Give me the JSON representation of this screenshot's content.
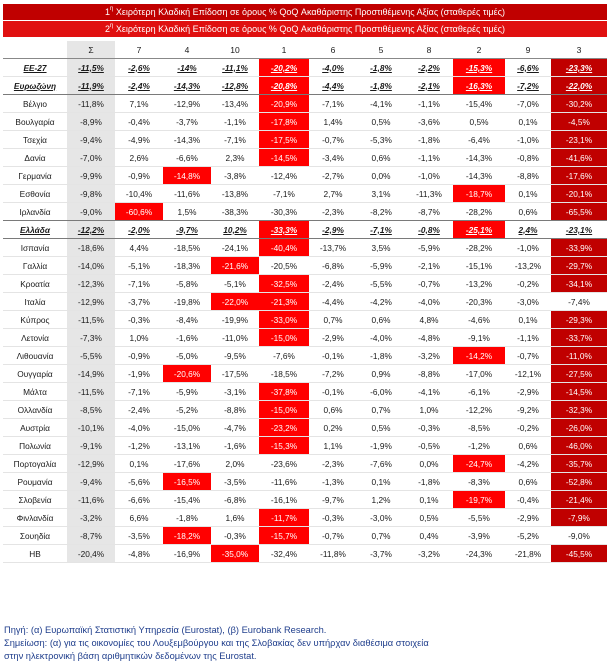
{
  "banner": {
    "line1_num": "1",
    "line1_sup": "η",
    "line1_text": " Χειρότερη Κλαδική Επίδοση σε όρους % QoQ Ακαθάριστης Προστιθέμενης Αξίας (σταθερές τιμές)",
    "line2_num": "2",
    "line2_sup": "η",
    "line2_text": " Χειρότερη Κλαδική Επίδοση σε όρους % QoQ Ακαθάριστης Προστιθέμενης Αξίας (σταθερές τιμές)"
  },
  "table": {
    "columns": [
      "",
      "Σ",
      "7",
      "4",
      "10",
      "1",
      "6",
      "5",
      "8",
      "2",
      "9",
      "3"
    ],
    "rows": [
      {
        "name": "ΕΕ-27",
        "values": [
          "-11,5%",
          "-2,6%",
          "-14%",
          "-11,1%",
          "-20,2%",
          "-4,0%",
          "-1,8%",
          "-2,2%",
          "-15,3%",
          "-6,6%",
          "-23,3%"
        ],
        "hl": [
          4,
          8
        ],
        "bold": true
      },
      {
        "name": "Ευρωζώνη",
        "values": [
          "-11,9%",
          "-2,4%",
          "-14,3%",
          "-12,8%",
          "-20,8%",
          "-4,4%",
          "-1,8%",
          "-2,1%",
          "-16,3%",
          "-7,2%",
          "-22,0%"
        ],
        "hl": [
          4,
          8
        ],
        "bold": true,
        "sep": true
      },
      {
        "name": "Βέλγιο",
        "values": [
          "-11,8%",
          "7,1%",
          "-12,9%",
          "-13,4%",
          "-20,9%",
          "-7,1%",
          "-4,1%",
          "-1,1%",
          "-15,4%",
          "-7,0%",
          "-30,2%"
        ],
        "hl": [
          4
        ]
      },
      {
        "name": "Βουλγαρία",
        "values": [
          "-8,9%",
          "-0,4%",
          "-3,7%",
          "-1,1%",
          "-17,8%",
          "1,4%",
          "0,5%",
          "-3,6%",
          "0,5%",
          "0,1%",
          "-4,5%"
        ],
        "hl": [
          4
        ]
      },
      {
        "name": "Τσεχία",
        "values": [
          "-9,4%",
          "-4,9%",
          "-14,3%",
          "-7,1%",
          "-17,5%",
          "-0,7%",
          "-5,3%",
          "-1,8%",
          "-6,4%",
          "-1,0%",
          "-23,1%"
        ],
        "hl": [
          4
        ]
      },
      {
        "name": "Δανία",
        "values": [
          "-7,0%",
          "2,6%",
          "-6,6%",
          "2,3%",
          "-14,5%",
          "-3,4%",
          "0,6%",
          "-1,1%",
          "-14,3%",
          "-0,8%",
          "-41,6%"
        ],
        "hl": [
          4
        ]
      },
      {
        "name": "Γερμανία",
        "values": [
          "-9,9%",
          "-0,9%",
          "-14,8%",
          "-3,8%",
          "-12,4%",
          "-2,7%",
          "0,0%",
          "-1,0%",
          "-14,3%",
          "-8,8%",
          "-17,6%"
        ],
        "hl": [
          2
        ]
      },
      {
        "name": "Εσθονία",
        "values": [
          "-9,8%",
          "-10,4%",
          "-11,6%",
          "-13,8%",
          "-7,1%",
          "2,7%",
          "3,1%",
          "-11,3%",
          "-18,7%",
          "0,1%",
          "-20,1%"
        ],
        "hl": [
          8
        ]
      },
      {
        "name": "Ιρλανδία",
        "values": [
          "-9,0%",
          "-60,6%",
          "1,5%",
          "-38,3%",
          "-30,3%",
          "-2,3%",
          "-8,2%",
          "-8,7%",
          "-28,2%",
          "0,6%",
          "-65,5%"
        ],
        "hl": [
          1
        ],
        "sep": true
      },
      {
        "name": "Ελλάδα",
        "values": [
          "-12,2%",
          "-2,0%",
          "-9,7%",
          "10,2%",
          "-33,3%",
          "-2,9%",
          "-7,1%",
          "-0,8%",
          "-25,1%",
          "2,4%",
          "-23,1%"
        ],
        "hl": [
          4,
          8
        ],
        "bold": true,
        "sep": true,
        "light3": true
      },
      {
        "name": "Ισπανία",
        "values": [
          "-18,6%",
          "4,4%",
          "-18,5%",
          "-24,1%",
          "-40,4%",
          "-13,7%",
          "3,5%",
          "-5,9%",
          "-28,2%",
          "-1,0%",
          "-33,9%"
        ],
        "hl": [
          4
        ]
      },
      {
        "name": "Γαλλία",
        "values": [
          "-14,0%",
          "-5,1%",
          "-18,3%",
          "-21,6%",
          "-20,5%",
          "-6,8%",
          "-5,9%",
          "-2,1%",
          "-15,1%",
          "-13,2%",
          "-29,7%"
        ],
        "hl": [
          3
        ]
      },
      {
        "name": "Κροατία",
        "values": [
          "-12,3%",
          "-7,1%",
          "-5,8%",
          "-5,1%",
          "-32,5%",
          "-2,4%",
          "-5,5%",
          "-0,7%",
          "-13,2%",
          "-0,2%",
          "-34,1%"
        ],
        "hl": [
          4
        ]
      },
      {
        "name": "Ιταλία",
        "values": [
          "-12,9%",
          "-3,7%",
          "-19,8%",
          "-22,0%",
          "-21,3%",
          "-4,4%",
          "-4,2%",
          "-4,0%",
          "-20,3%",
          "-3,0%",
          "-7,4%"
        ],
        "hl": [
          3,
          4
        ],
        "light3": true
      },
      {
        "name": "Κύπρος",
        "values": [
          "-11,5%",
          "-0,3%",
          "-8,4%",
          "-19,9%",
          "-33,0%",
          "0,7%",
          "0,6%",
          "4,8%",
          "-4,6%",
          "0,1%",
          "-29,3%"
        ],
        "hl": [
          4
        ]
      },
      {
        "name": "Λετονία",
        "values": [
          "-7,3%",
          "1,0%",
          "-1,6%",
          "-11,0%",
          "-15,0%",
          "-2,9%",
          "-4,0%",
          "-4,8%",
          "-9,1%",
          "-1,1%",
          "-33,7%"
        ],
        "hl": [
          4
        ]
      },
      {
        "name": "Λιθουανία",
        "values": [
          "-5,5%",
          "-0,9%",
          "-5,0%",
          "-9,5%",
          "-7,6%",
          "-0,1%",
          "-1,8%",
          "-3,2%",
          "-14,2%",
          "-0,7%",
          "-11,0%"
        ],
        "hl": [
          8
        ]
      },
      {
        "name": "Ουγγαρία",
        "values": [
          "-14,9%",
          "-1,9%",
          "-20,6%",
          "-17,5%",
          "-18,5%",
          "-7,2%",
          "0,9%",
          "-8,8%",
          "-17,0%",
          "-12,1%",
          "-27,5%"
        ],
        "hl": [
          2
        ]
      },
      {
        "name": "Μάλτα",
        "values": [
          "-11,5%",
          "-7,1%",
          "-5,9%",
          "-3,1%",
          "-37,8%",
          "-0,1%",
          "-6,0%",
          "-4,1%",
          "-6,1%",
          "-2,9%",
          "-14,5%"
        ],
        "hl": [
          4
        ]
      },
      {
        "name": "Ολλανδία",
        "values": [
          "-8,5%",
          "-2,4%",
          "-5,2%",
          "-8,8%",
          "-15,0%",
          "0,6%",
          "0,7%",
          "1,0%",
          "-12,2%",
          "-9,2%",
          "-32,3%"
        ],
        "hl": [
          4
        ]
      },
      {
        "name": "Αυστρία",
        "values": [
          "-10,1%",
          "-4,0%",
          "-15,0%",
          "-4,7%",
          "-23,2%",
          "0,2%",
          "0,5%",
          "-0,3%",
          "-8,5%",
          "-0,2%",
          "-26,0%"
        ],
        "hl": [
          4
        ]
      },
      {
        "name": "Πολωνία",
        "values": [
          "-9,1%",
          "-1,2%",
          "-13,1%",
          "-1,6%",
          "-15,3%",
          "1,1%",
          "-1,9%",
          "-0,5%",
          "-1,2%",
          "0,6%",
          "-46,0%"
        ],
        "hl": [
          4
        ]
      },
      {
        "name": "Πορτογαλία",
        "values": [
          "-12,9%",
          "0,1%",
          "-17,6%",
          "2,0%",
          "-23,6%",
          "-2,3%",
          "-7,6%",
          "0,0%",
          "-24,7%",
          "-4,2%",
          "-35,7%"
        ],
        "hl": [
          8
        ]
      },
      {
        "name": "Ρουμανία",
        "values": [
          "-9,4%",
          "-5,6%",
          "-16,5%",
          "-3,5%",
          "-11,6%",
          "-1,3%",
          "0,1%",
          "-1,8%",
          "-8,3%",
          "0,6%",
          "-52,8%"
        ],
        "hl": [
          2
        ]
      },
      {
        "name": "Σλοβενία",
        "values": [
          "-11,6%",
          "-6,6%",
          "-15,4%",
          "-6,8%",
          "-16,1%",
          "-9,7%",
          "1,2%",
          "0,1%",
          "-19,7%",
          "-0,4%",
          "-21,4%"
        ],
        "hl": [
          8
        ]
      },
      {
        "name": "Φινλανδία",
        "values": [
          "-3,2%",
          "6,6%",
          "-1,8%",
          "1,6%",
          "-11,7%",
          "-0,3%",
          "-3,0%",
          "0,5%",
          "-5,5%",
          "-2,9%",
          "-7,9%"
        ],
        "hl": [
          4
        ]
      },
      {
        "name": "Σουηδία",
        "values": [
          "-8,7%",
          "-3,5%",
          "-18,2%",
          "-0,3%",
          "-15,7%",
          "-0,7%",
          "0,7%",
          "0,4%",
          "-3,9%",
          "-5,2%",
          "-9,0%"
        ],
        "hl": [
          2,
          4
        ],
        "light3": true
      },
      {
        "name": "ΗΒ",
        "values": [
          "-20,4%",
          "-4,8%",
          "-16,9%",
          "-35,0%",
          "-32,4%",
          "-11,8%",
          "-3,7%",
          "-3,2%",
          "-24,3%",
          "-21,8%",
          "-45,5%"
        ],
        "hl": [
          3
        ]
      }
    ]
  },
  "notes": {
    "source": "Πηγή: (α) Ευρωπαϊκή Στατιστική Υπηρεσία (Eurostat), (β) Eurobank Research.",
    "note_line1": "Σημείωση: (α) για τις οικονομίες του Λουξεμβούργου και της Σλοβακίας δεν υπήρχαν διαθέσιμα στοιχεία",
    "note_line2": "στην ηλεκτρονική βάση αριθμητικών δεδομένων της Eurostat."
  },
  "colors": {
    "first_worst": "#c00000",
    "second_worst": "#ff0000",
    "sum_column": "#e6e6e6",
    "notes_text": "#1f3e8c"
  }
}
